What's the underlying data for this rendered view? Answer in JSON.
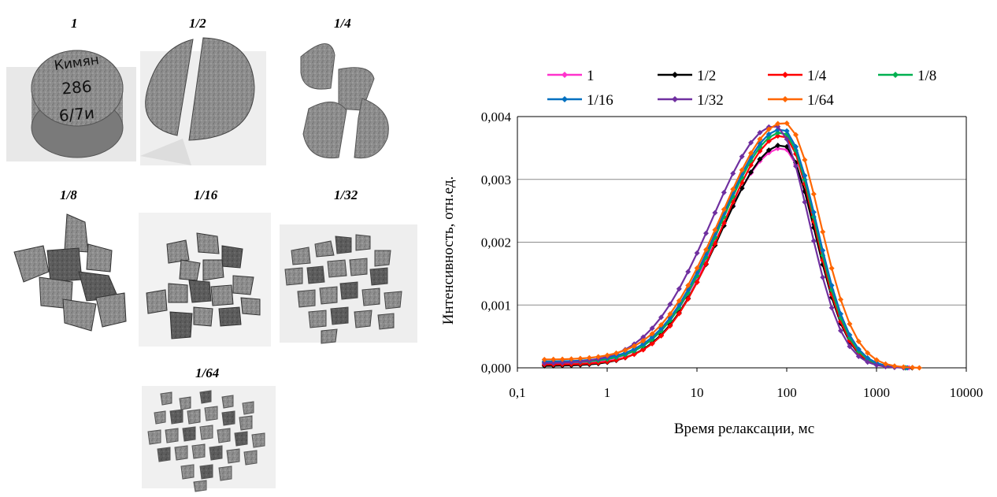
{
  "samples": [
    {
      "label": "1"
    },
    {
      "label": "1/2"
    },
    {
      "label": "1/4"
    },
    {
      "label": "1/8"
    },
    {
      "label": "1/16"
    },
    {
      "label": "1/32"
    },
    {
      "label": "1/64"
    }
  ],
  "core_text": [
    "Кимян",
    "286",
    "6/7и"
  ],
  "chart_data": {
    "type": "line",
    "xscale": "log",
    "xlabel": "Время релаксации, мс",
    "ylabel": "Интенсивность, отн.ед.",
    "xlim": [
      0.1,
      10000
    ],
    "ylim": [
      0,
      0.004
    ],
    "xticks": [
      "0,1",
      "1",
      "10",
      "100",
      "1000",
      "10000"
    ],
    "yticks": [
      "0,000",
      "0,001",
      "0,002",
      "0,003",
      "0,004"
    ],
    "grid": "horizontal",
    "legend_position": "top",
    "series": [
      {
        "name": "1",
        "color": "#ff33cc",
        "peak_x": 90,
        "peak": 0.0035,
        "width": 0.5,
        "skew": 0.4,
        "fine": 5e-05,
        "tail": 2300
      },
      {
        "name": "1/2",
        "color": "#000000",
        "peak_x": 90,
        "peak": 0.00355,
        "width": 0.48,
        "skew": 0.42,
        "fine": 3e-05,
        "tail": 2500
      },
      {
        "name": "1/4",
        "color": "#ff0000",
        "peak_x": 90,
        "peak": 0.0037,
        "width": 0.48,
        "skew": 0.38,
        "fine": 5e-05,
        "tail": 2100
      },
      {
        "name": "1/8",
        "color": "#00b050",
        "peak_x": 90,
        "peak": 0.00375,
        "width": 0.49,
        "skew": 0.38,
        "fine": 8e-05,
        "tail": 2100
      },
      {
        "name": "1/16",
        "color": "#0070c0",
        "peak_x": 90,
        "peak": 0.0038,
        "width": 0.5,
        "skew": 0.36,
        "fine": 0.0001,
        "tail": 2200
      },
      {
        "name": "1/32",
        "color": "#7030a0",
        "peak_x": 75,
        "peak": 0.00385,
        "width": 0.5,
        "skew": 0.4,
        "fine": 7e-05,
        "tail": 2000
      },
      {
        "name": "1/64",
        "color": "#ff6600",
        "peak_x": 95,
        "peak": 0.0039,
        "width": 0.52,
        "skew": 0.34,
        "fine": 0.00013,
        "tail": 3000
      }
    ]
  }
}
